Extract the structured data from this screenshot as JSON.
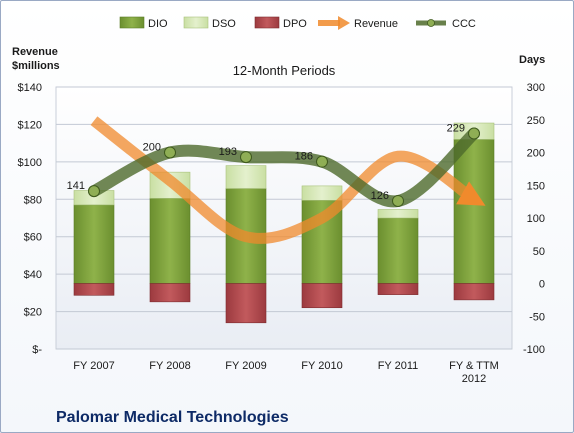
{
  "chart_data": {
    "type": "bar",
    "title": "12-Month Periods",
    "company": "Palomar Medical Technologies",
    "left_axis_label": "Revenue\n$millions",
    "right_axis_label": "Days",
    "categories": [
      "FY 2007",
      "FY 2008",
      "FY 2009",
      "FY 2010",
      "FY 2011",
      "FY & TTM\n2012"
    ],
    "left_ylim": [
      0,
      140
    ],
    "left_ticks": [
      "$-",
      "$20",
      "$40",
      "$60",
      "$80",
      "$100",
      "$120",
      "$140"
    ],
    "right_ylim": [
      -100,
      300
    ],
    "right_ticks": [
      "-100",
      "-50",
      "0",
      "50",
      "100",
      "150",
      "200",
      "250",
      "300"
    ],
    "legend": [
      "DIO",
      "DSO",
      "DPO",
      "Revenue",
      "CCC"
    ],
    "legend_position": "top",
    "grid": true,
    "series": [
      {
        "name": "DIO",
        "axis": "days",
        "values": [
          120,
          130,
          145,
          127,
          100,
          220
        ]
      },
      {
        "name": "DSO",
        "axis": "days",
        "values": [
          22,
          40,
          35,
          22,
          13,
          25
        ]
      },
      {
        "name": "DPO",
        "axis": "days",
        "values": [
          -18,
          -28,
          -60,
          -37,
          -17,
          -25
        ]
      },
      {
        "name": "Revenue",
        "axis": "revenue",
        "values": [
          122,
          90,
          60,
          70,
          103,
          80
        ]
      },
      {
        "name": "CCC",
        "axis": "days",
        "values": [
          141,
          200,
          193,
          186,
          126,
          229
        ]
      }
    ],
    "ccc_labels": [
      "141",
      "200",
      "193",
      "186",
      "126",
      "229"
    ],
    "colors": {
      "DIO": "#7ea33e",
      "DSO": "#d7e8b8",
      "DPO": "#b34a4e",
      "Revenue": "#f08a2c",
      "CCC": "#4e6a2c"
    }
  }
}
